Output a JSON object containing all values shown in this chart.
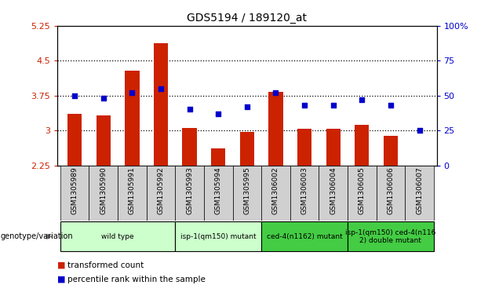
{
  "title": "GDS5194 / 189120_at",
  "samples": [
    "GSM1305989",
    "GSM1305990",
    "GSM1305991",
    "GSM1305992",
    "GSM1305993",
    "GSM1305994",
    "GSM1305995",
    "GSM1306002",
    "GSM1306003",
    "GSM1306004",
    "GSM1306005",
    "GSM1306006",
    "GSM1306007"
  ],
  "bar_values": [
    3.35,
    3.32,
    4.28,
    4.88,
    3.05,
    2.62,
    2.97,
    3.82,
    3.03,
    3.03,
    3.12,
    2.88,
    2.25
  ],
  "dot_values": [
    50,
    48,
    52,
    55,
    40,
    37,
    42,
    52,
    43,
    43,
    47,
    43,
    25
  ],
  "bar_bottom": 2.25,
  "ylim_left": [
    2.25,
    5.25
  ],
  "ylim_right": [
    0,
    100
  ],
  "yticks_left": [
    2.25,
    3.0,
    3.75,
    4.5,
    5.25
  ],
  "ytick_labels_left": [
    "2.25",
    "3",
    "3.75",
    "4.5",
    "5.25"
  ],
  "yticks_right": [
    0,
    25,
    50,
    75,
    100
  ],
  "ytick_labels_right": [
    "0",
    "25",
    "50",
    "75",
    "100%"
  ],
  "hlines": [
    3.0,
    3.75,
    4.5
  ],
  "bar_color": "#cc2200",
  "dot_color": "#0000cc",
  "groups": [
    {
      "label": "wild type",
      "start": 0,
      "end": 3,
      "color": "#ccffcc"
    },
    {
      "label": "isp-1(qm150) mutant",
      "start": 4,
      "end": 6,
      "color": "#ccffcc"
    },
    {
      "label": "ced-4(n1162) mutant",
      "start": 7,
      "end": 9,
      "color": "#44cc44"
    },
    {
      "label": "isp-1(qm150) ced-4(n116\n2) double mutant",
      "start": 10,
      "end": 12,
      "color": "#44cc44"
    }
  ],
  "genotype_label": "genotype/variation",
  "legend_bar_label": "transformed count",
  "legend_dot_label": "percentile rank within the sample",
  "plot_bg": "#ffffff",
  "tick_bg": "#d0d0d0"
}
